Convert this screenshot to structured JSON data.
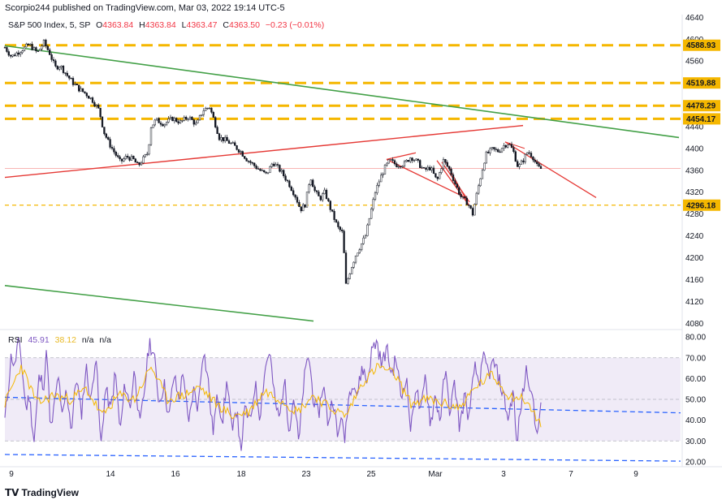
{
  "header": {
    "published_text": "Scorpio244 published on TradingView.com, Mar 03, 2022 19:14 UTC-5"
  },
  "legend": {
    "symbol": "S&P 500 Index, 5, SP",
    "open_label": "O",
    "open": "4363.84",
    "high_label": "H",
    "high": "4363.84",
    "low_label": "L",
    "low": "4363.47",
    "close_label": "C",
    "close": "4363.50",
    "change": "−0.23 (−0.01%)"
  },
  "rsi_legend": {
    "title": "RSI",
    "value": "45.91",
    "ma_value": "38.12",
    "na1": "n/a",
    "na2": "n/a"
  },
  "footer": {
    "brand": "TradingView"
  },
  "colors": {
    "price_up": "#26a69a",
    "price_down": "#ef5350",
    "candle": "#131722",
    "support": "#f5b700",
    "green_line": "#43a047",
    "red_line": "#e53935",
    "rsi": "#7e57c2",
    "rsi_ma": "#f5b700",
    "rsi_band": "#ede7f6",
    "rsi_trend": "#2962ff"
  },
  "chart_data": {
    "type": "candlestick",
    "x_tick_labels": [
      "9",
      "14",
      "16",
      "18",
      "23",
      "25",
      "Mar",
      "3",
      "7",
      "9"
    ],
    "price_axis": {
      "ticks": [
        4080,
        4120,
        4160,
        4200,
        4240,
        4280,
        4320,
        4360,
        4400,
        4440,
        4480,
        4520,
        4560,
        4600,
        4640
      ],
      "range": [
        4070,
        4645
      ]
    },
    "price_levels": [
      {
        "label": "4588.93",
        "value": 4588.93
      },
      {
        "label": "4519.88",
        "value": 4519.88
      },
      {
        "label": "4478.29",
        "value": 4478.29
      },
      {
        "label": "4454.17",
        "value": 4454.17
      },
      {
        "label": "4296.18",
        "value": 4296.18
      }
    ],
    "price_anchors": [
      [
        0,
        4585
      ],
      [
        8,
        4568
      ],
      [
        18,
        4578
      ],
      [
        30,
        4590
      ],
      [
        40,
        4575
      ],
      [
        48,
        4594
      ],
      [
        55,
        4575
      ],
      [
        62,
        4548
      ],
      [
        68,
        4552
      ],
      [
        76,
        4535
      ],
      [
        84,
        4520
      ],
      [
        92,
        4508
      ],
      [
        100,
        4500
      ],
      [
        108,
        4488
      ],
      [
        116,
        4470
      ],
      [
        122,
        4430
      ],
      [
        128,
        4410
      ],
      [
        134,
        4395
      ],
      [
        142,
        4375
      ],
      [
        150,
        4385
      ],
      [
        158,
        4380
      ],
      [
        164,
        4368
      ],
      [
        170,
        4380
      ],
      [
        176,
        4392
      ],
      [
        180,
        4440
      ],
      [
        186,
        4452
      ],
      [
        196,
        4445
      ],
      [
        206,
        4455
      ],
      [
        216,
        4448
      ],
      [
        226,
        4458
      ],
      [
        236,
        4443
      ],
      [
        244,
        4470
      ],
      [
        252,
        4476
      ],
      [
        258,
        4450
      ],
      [
        264,
        4420
      ],
      [
        272,
        4415
      ],
      [
        282,
        4405
      ],
      [
        290,
        4395
      ],
      [
        298,
        4380
      ],
      [
        306,
        4370
      ],
      [
        314,
        4360
      ],
      [
        322,
        4352
      ],
      [
        330,
        4375
      ],
      [
        340,
        4358
      ],
      [
        350,
        4335
      ],
      [
        358,
        4312
      ],
      [
        364,
        4288
      ],
      [
        370,
        4298
      ],
      [
        376,
        4350
      ],
      [
        382,
        4320
      ],
      [
        388,
        4308
      ],
      [
        394,
        4320
      ],
      [
        402,
        4285
      ],
      [
        410,
        4255
      ],
      [
        416,
        4245
      ],
      [
        420,
        4150
      ],
      [
        426,
        4180
      ],
      [
        432,
        4205
      ],
      [
        438,
        4222
      ],
      [
        444,
        4240
      ],
      [
        450,
        4280
      ],
      [
        456,
        4320
      ],
      [
        462,
        4345
      ],
      [
        468,
        4365
      ],
      [
        474,
        4378
      ],
      [
        482,
        4370
      ],
      [
        492,
        4372
      ],
      [
        500,
        4385
      ],
      [
        508,
        4375
      ],
      [
        516,
        4360
      ],
      [
        524,
        4365
      ],
      [
        532,
        4340
      ],
      [
        540,
        4378
      ],
      [
        548,
        4360
      ],
      [
        556,
        4330
      ],
      [
        562,
        4310
      ],
      [
        570,
        4300
      ],
      [
        576,
        4280
      ],
      [
        580,
        4310
      ],
      [
        586,
        4350
      ],
      [
        592,
        4388
      ],
      [
        600,
        4398
      ],
      [
        608,
        4395
      ],
      [
        614,
        4405
      ],
      [
        620,
        4410
      ],
      [
        626,
        4395
      ],
      [
        632,
        4365
      ],
      [
        638,
        4378
      ],
      [
        644,
        4395
      ],
      [
        650,
        4385
      ],
      [
        656,
        4365
      ],
      [
        660,
        4363
      ]
    ],
    "rsi": {
      "ticks": [
        20,
        30,
        40,
        50,
        60,
        70,
        80
      ],
      "range": [
        18,
        82
      ],
      "band": [
        30,
        70
      ],
      "mid": 50,
      "anchors": [
        [
          0,
          40
        ],
        [
          4,
          55
        ],
        [
          8,
          72
        ],
        [
          12,
          65
        ],
        [
          16,
          78
        ],
        [
          20,
          70
        ],
        [
          26,
          45
        ],
        [
          30,
          52
        ],
        [
          36,
          30
        ],
        [
          42,
          60
        ],
        [
          48,
          58
        ],
        [
          52,
          75
        ],
        [
          56,
          33
        ],
        [
          62,
          50
        ],
        [
          66,
          62
        ],
        [
          70,
          40
        ],
        [
          76,
          55
        ],
        [
          82,
          35
        ],
        [
          88,
          62
        ],
        [
          94,
          42
        ],
        [
          100,
          66
        ],
        [
          106,
          48
        ],
        [
          112,
          74
        ],
        [
          118,
          26
        ],
        [
          124,
          56
        ],
        [
          130,
          44
        ],
        [
          136,
          63
        ],
        [
          142,
          34
        ],
        [
          148,
          58
        ],
        [
          154,
          46
        ],
        [
          160,
          65
        ],
        [
          166,
          36
        ],
        [
          172,
          55
        ],
        [
          178,
          78
        ],
        [
          184,
          70
        ],
        [
          190,
          48
        ],
        [
          196,
          58
        ],
        [
          202,
          40
        ],
        [
          208,
          62
        ],
        [
          214,
          50
        ],
        [
          220,
          64
        ],
        [
          226,
          36
        ],
        [
          232,
          55
        ],
        [
          238,
          46
        ],
        [
          244,
          75
        ],
        [
          250,
          60
        ],
        [
          256,
          34
        ],
        [
          262,
          52
        ],
        [
          268,
          40
        ],
        [
          274,
          60
        ],
        [
          280,
          32
        ],
        [
          286,
          48
        ],
        [
          290,
          24
        ],
        [
          296,
          46
        ],
        [
          302,
          38
        ],
        [
          308,
          58
        ],
        [
          314,
          42
        ],
        [
          320,
          64
        ],
        [
          326,
          74
        ],
        [
          332,
          50
        ],
        [
          338,
          40
        ],
        [
          344,
          60
        ],
        [
          350,
          36
        ],
        [
          356,
          52
        ],
        [
          362,
          28
        ],
        [
          368,
          58
        ],
        [
          374,
          72
        ],
        [
          380,
          50
        ],
        [
          386,
          42
        ],
        [
          392,
          58
        ],
        [
          398,
          38
        ],
        [
          404,
          52
        ],
        [
          410,
          30
        ],
        [
          414,
          44
        ],
        [
          418,
          28
        ],
        [
          422,
          48
        ],
        [
          428,
          60
        ],
        [
          434,
          52
        ],
        [
          440,
          66
        ],
        [
          446,
          58
        ],
        [
          452,
          74
        ],
        [
          458,
          78
        ],
        [
          464,
          66
        ],
        [
          470,
          75
        ],
        [
          476,
          62
        ],
        [
          482,
          70
        ],
        [
          488,
          50
        ],
        [
          494,
          62
        ],
        [
          500,
          34
        ],
        [
          506,
          58
        ],
        [
          512,
          42
        ],
        [
          518,
          62
        ],
        [
          524,
          38
        ],
        [
          530,
          52
        ],
        [
          536,
          40
        ],
        [
          542,
          64
        ],
        [
          548,
          44
        ],
        [
          554,
          58
        ],
        [
          560,
          36
        ],
        [
          566,
          52
        ],
        [
          572,
          40
        ],
        [
          578,
          66
        ],
        [
          584,
          58
        ],
        [
          590,
          70
        ],
        [
          596,
          62
        ],
        [
          602,
          68
        ],
        [
          608,
          60
        ],
        [
          614,
          52
        ],
        [
          620,
          40
        ],
        [
          626,
          55
        ],
        [
          630,
          28
        ],
        [
          636,
          48
        ],
        [
          642,
          64
        ],
        [
          648,
          56
        ],
        [
          654,
          34
        ],
        [
          660,
          46
        ]
      ],
      "ma_anchors": [
        [
          0,
          48
        ],
        [
          20,
          66
        ],
        [
          40,
          48
        ],
        [
          60,
          52
        ],
        [
          80,
          50
        ],
        [
          100,
          55
        ],
        [
          120,
          42
        ],
        [
          140,
          52
        ],
        [
          160,
          50
        ],
        [
          180,
          66
        ],
        [
          200,
          50
        ],
        [
          220,
          52
        ],
        [
          240,
          56
        ],
        [
          260,
          48
        ],
        [
          280,
          42
        ],
        [
          300,
          44
        ],
        [
          320,
          54
        ],
        [
          340,
          50
        ],
        [
          360,
          44
        ],
        [
          380,
          52
        ],
        [
          400,
          46
        ],
        [
          420,
          42
        ],
        [
          440,
          58
        ],
        [
          460,
          66
        ],
        [
          480,
          62
        ],
        [
          500,
          48
        ],
        [
          520,
          50
        ],
        [
          540,
          48
        ],
        [
          560,
          46
        ],
        [
          580,
          56
        ],
        [
          600,
          62
        ],
        [
          620,
          52
        ],
        [
          640,
          50
        ],
        [
          660,
          38
        ]
      ]
    }
  }
}
